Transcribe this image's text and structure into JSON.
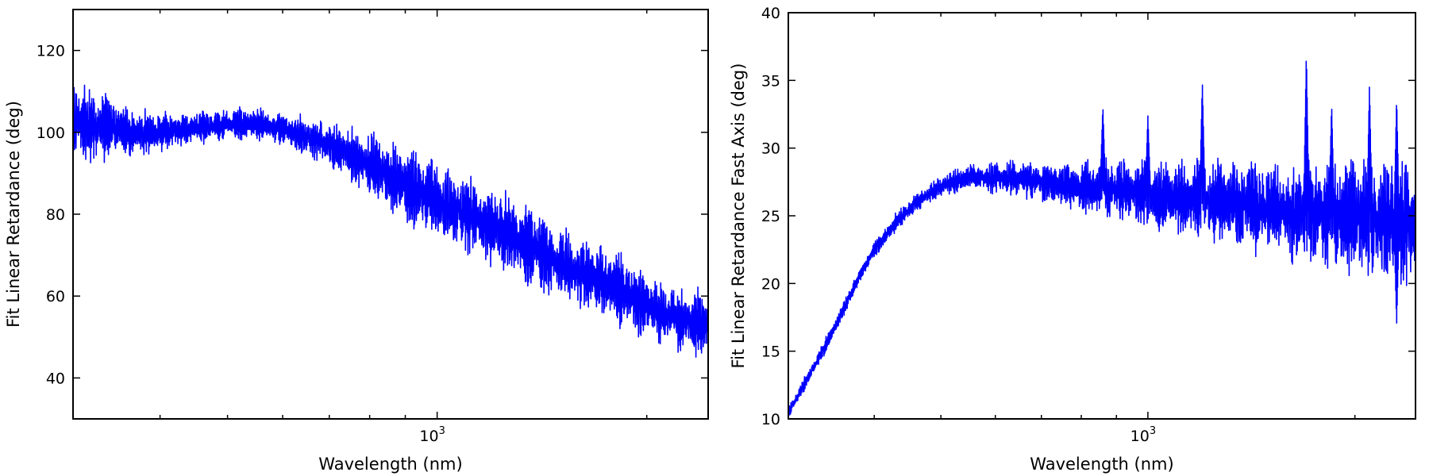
{
  "chart_data": [
    {
      "type": "line",
      "title": "",
      "xlabel": "Wavelength (nm)",
      "ylabel": "Fit Linear Retardance (deg)",
      "xscale": "log",
      "xlim": [
        300,
        2450
      ],
      "ylim": [
        30,
        130
      ],
      "x_major_ticks": [
        1000
      ],
      "x_major_tick_labels": [
        "10^3"
      ],
      "x_minor_ticks": [
        300,
        400,
        500,
        600,
        700,
        800,
        900,
        2000
      ],
      "y_ticks": [
        40,
        60,
        80,
        100,
        120
      ],
      "y_tick_labels": [
        "40",
        "60",
        "80",
        "100",
        "120"
      ],
      "grid": false,
      "line_color": "#0000ff",
      "series": [
        {
          "x": [
            300,
            330,
            360,
            400,
            450,
            500,
            550,
            600,
            650,
            700,
            750,
            800,
            850,
            900,
            950,
            1000,
            1100,
            1200,
            1300,
            1400,
            1500,
            1600,
            1700,
            1800,
            1900,
            2000,
            2100,
            2200,
            2300,
            2450
          ],
          "y_center": [
            103,
            101,
            100,
            100,
            101,
            102,
            102,
            101,
            99,
            97,
            95,
            92,
            90,
            87,
            85,
            83,
            80,
            77,
            74,
            71,
            68,
            66,
            64,
            62,
            60,
            58,
            56,
            55,
            54,
            53
          ],
          "y_spread": [
            10,
            9,
            6,
            5,
            4,
            4,
            4,
            4,
            5,
            6,
            7,
            8,
            9,
            10,
            10,
            10,
            10,
            10,
            10,
            10,
            9,
            9,
            9,
            9,
            9,
            8,
            8,
            8,
            8,
            9
          ]
        }
      ]
    },
    {
      "type": "line",
      "title": "",
      "xlabel": "Wavelength (nm)",
      "ylabel": "Fit Linear Retardance Fast Axis (deg)",
      "xscale": "log",
      "xlim": [
        300,
        2450
      ],
      "ylim": [
        10,
        40
      ],
      "x_major_ticks": [
        1000
      ],
      "x_major_tick_labels": [
        "10^3"
      ],
      "x_minor_ticks": [
        300,
        400,
        500,
        600,
        700,
        800,
        900,
        2000
      ],
      "y_ticks": [
        10,
        15,
        20,
        25,
        30,
        35,
        40
      ],
      "y_tick_labels": [
        "10",
        "15",
        "20",
        "25",
        "30",
        "35",
        "40"
      ],
      "grid": false,
      "line_color": "#0000ff",
      "series": [
        {
          "x": [
            300,
            320,
            340,
            360,
            380,
            400,
            430,
            460,
            500,
            550,
            600,
            650,
            700,
            750,
            800,
            900,
            1000,
            1100,
            1200,
            1300,
            1400,
            1500,
            1600,
            1700,
            1800,
            1900,
            2000,
            2100,
            2200,
            2300,
            2450
          ],
          "y_center": [
            10.5,
            13,
            15.5,
            18,
            20.5,
            22.5,
            24.5,
            26,
            27.2,
            27.8,
            27.8,
            27.7,
            27.5,
            27.3,
            27.1,
            26.9,
            26.6,
            26.4,
            26.2,
            26.0,
            25.8,
            25.6,
            25.4,
            25.3,
            25.1,
            25.0,
            24.9,
            24.7,
            24.6,
            24.5,
            24.5
          ],
          "y_spread": [
            0.5,
            0.5,
            0.6,
            0.6,
            0.6,
            0.6,
            0.7,
            0.7,
            0.8,
            1.0,
            1.2,
            1.4,
            1.6,
            1.8,
            2.0,
            2.3,
            2.6,
            2.8,
            3.0,
            3.2,
            3.4,
            3.6,
            3.8,
            4.0,
            4.2,
            4.3,
            4.4,
            4.6,
            4.8,
            5.0,
            5.0
          ],
          "peaks": [
            {
              "x": 860,
              "y": 33.3
            },
            {
              "x": 1000,
              "y": 32.5
            },
            {
              "x": 1200,
              "y": 35.1
            },
            {
              "x": 1700,
              "y": 37.4
            },
            {
              "x": 1850,
              "y": 33.5
            },
            {
              "x": 2100,
              "y": 34.9
            },
            {
              "x": 2300,
              "y": 34.0
            }
          ],
          "troughs": [
            {
              "x": 2300,
              "y": 16.8
            }
          ]
        }
      ]
    }
  ]
}
